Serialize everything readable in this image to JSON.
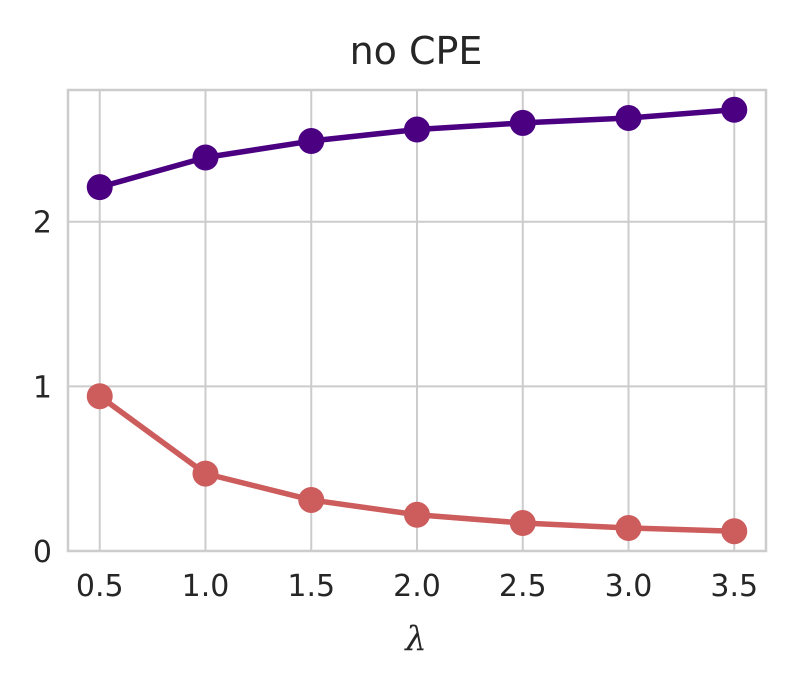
{
  "chart_data": {
    "type": "line",
    "title": "no CPE",
    "xlabel": "λ",
    "ylabel": "",
    "x": [
      0.5,
      1.0,
      1.5,
      2.0,
      2.5,
      3.0,
      3.5
    ],
    "xtick_labels": [
      "0.5",
      "1.0",
      "1.5",
      "2.0",
      "2.5",
      "3.0",
      "3.5"
    ],
    "ytick_labels": [
      "0",
      "1",
      "2"
    ],
    "yticks": [
      0,
      1,
      2
    ],
    "xlim": [
      0.35,
      3.65
    ],
    "ylim": [
      0.0,
      2.8
    ],
    "grid": true,
    "legend": "none",
    "series": [
      {
        "values": [
          2.21,
          2.39,
          2.49,
          2.56,
          2.6,
          2.63,
          2.68
        ],
        "color": "#4b0082"
      },
      {
        "values": [
          0.94,
          0.47,
          0.31,
          0.22,
          0.17,
          0.14,
          0.12
        ],
        "color": "#cd5c5c"
      }
    ]
  }
}
